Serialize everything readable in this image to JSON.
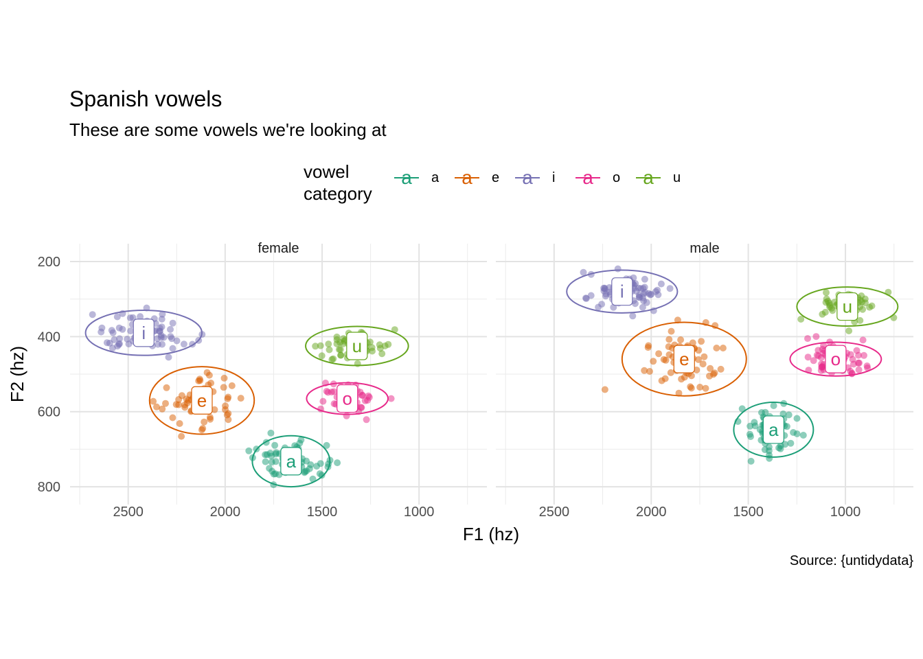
{
  "chart_data": {
    "type": "scatter",
    "title": "Spanish vowels",
    "subtitle": "These are some vowels we're looking at",
    "xlabel": "F1 (hz)",
    "ylabel": "F2 (hz)",
    "caption": "Source: {untidydata}",
    "x_reversed": true,
    "y_reversed": true,
    "xlim": [
      2800,
      650
    ],
    "ylim": [
      180,
      820
    ],
    "x_ticks": [
      2500,
      2000,
      1500,
      1000
    ],
    "y_ticks": [
      200,
      400,
      600,
      800
    ],
    "grid": true,
    "legend": {
      "title": "vowel\ncategory",
      "position": "top",
      "key_glyph": "a",
      "entries": [
        {
          "label": "a",
          "color": "#1B9E77"
        },
        {
          "label": "e",
          "color": "#D95F02"
        },
        {
          "label": "i",
          "color": "#7570B3"
        },
        {
          "label": "o",
          "color": "#E7298A"
        },
        {
          "label": "u",
          "color": "#66A61E"
        }
      ]
    },
    "panels": [
      {
        "name": "female",
        "groups": [
          {
            "vowel": "a",
            "color": "#1B9E77",
            "center": [
              1660,
              732
            ],
            "sd": [
              105,
              30
            ],
            "n": 60,
            "ellipse": {
              "rx": 200,
              "ry": 68
            }
          },
          {
            "vowel": "e",
            "color": "#D95F02",
            "center": [
              2120,
              570
            ],
            "sd": [
              110,
              45
            ],
            "n": 60,
            "ellipse": {
              "rx": 270,
              "ry": 90
            }
          },
          {
            "vowel": "i",
            "color": "#7570B3",
            "center": [
              2420,
              390
            ],
            "sd": [
              120,
              28
            ],
            "n": 70,
            "ellipse": {
              "rx": 300,
              "ry": 60
            }
          },
          {
            "vowel": "o",
            "color": "#E7298A",
            "center": [
              1370,
              565
            ],
            "sd": [
              75,
              20
            ],
            "n": 60,
            "ellipse": {
              "rx": 210,
              "ry": 42
            }
          },
          {
            "vowel": "u",
            "color": "#66A61E",
            "center": [
              1320,
              425
            ],
            "sd": [
              95,
              22
            ],
            "n": 60,
            "ellipse": {
              "rx": 265,
              "ry": 52
            }
          }
        ]
      },
      {
        "name": "male",
        "groups": [
          {
            "vowel": "a",
            "color": "#1B9E77",
            "center": [
              1370,
              648
            ],
            "sd": [
              70,
              35
            ],
            "n": 60,
            "ellipse": {
              "rx": 205,
              "ry": 73
            }
          },
          {
            "vowel": "e",
            "color": "#D95F02",
            "center": [
              1830,
              460
            ],
            "sd": [
              120,
              48
            ],
            "n": 60,
            "ellipse": {
              "rx": 320,
              "ry": 98
            }
          },
          {
            "vowel": "i",
            "color": "#7570B3",
            "center": [
              2150,
              280
            ],
            "sd": [
              110,
              25
            ],
            "n": 70,
            "ellipse": {
              "rx": 285,
              "ry": 57
            }
          },
          {
            "vowel": "o",
            "color": "#E7298A",
            "center": [
              1050,
              460
            ],
            "sd": [
              85,
              22
            ],
            "n": 60,
            "ellipse": {
              "rx": 235,
              "ry": 45
            }
          },
          {
            "vowel": "u",
            "color": "#66A61E",
            "center": [
              990,
              320
            ],
            "sd": [
              90,
              22
            ],
            "n": 60,
            "ellipse": {
              "rx": 260,
              "ry": 52
            }
          }
        ]
      }
    ]
  }
}
